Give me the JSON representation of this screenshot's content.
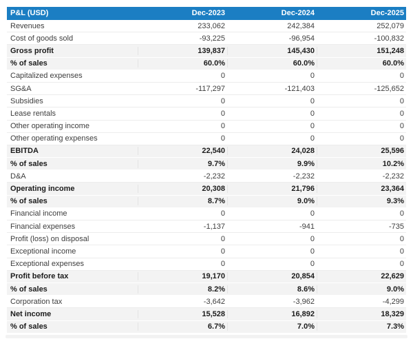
{
  "chart_data": {
    "type": "table",
    "title": "P&L (USD)",
    "columns": [
      "P&L (USD)",
      "Dec-2023",
      "Dec-2024",
      "Dec-2025"
    ],
    "rows": [
      {
        "label": "Revenues",
        "values": [
          "233,062",
          "242,384",
          "252,079"
        ],
        "emphasis": false
      },
      {
        "label": "Cost of goods sold",
        "values": [
          "-93,225",
          "-96,954",
          "-100,832"
        ],
        "emphasis": false
      },
      {
        "label": "Gross profit",
        "values": [
          "139,837",
          "145,430",
          "151,248"
        ],
        "emphasis": true
      },
      {
        "label": "% of sales",
        "values": [
          "60.0%",
          "60.0%",
          "60.0%"
        ],
        "emphasis": true
      },
      {
        "label": "Capitalized expenses",
        "values": [
          "0",
          "0",
          "0"
        ],
        "emphasis": false
      },
      {
        "label": "SG&A",
        "values": [
          "-117,297",
          "-121,403",
          "-125,652"
        ],
        "emphasis": false
      },
      {
        "label": "Subsidies",
        "values": [
          "0",
          "0",
          "0"
        ],
        "emphasis": false
      },
      {
        "label": "Lease rentals",
        "values": [
          "0",
          "0",
          "0"
        ],
        "emphasis": false
      },
      {
        "label": "Other operating income",
        "values": [
          "0",
          "0",
          "0"
        ],
        "emphasis": false
      },
      {
        "label": "Other operating expenses",
        "values": [
          "0",
          "0",
          "0"
        ],
        "emphasis": false
      },
      {
        "label": "EBITDA",
        "values": [
          "22,540",
          "24,028",
          "25,596"
        ],
        "emphasis": true
      },
      {
        "label": "% of sales",
        "values": [
          "9.7%",
          "9.9%",
          "10.2%"
        ],
        "emphasis": true
      },
      {
        "label": "D&A",
        "values": [
          "-2,232",
          "-2,232",
          "-2,232"
        ],
        "emphasis": false
      },
      {
        "label": "Operating income",
        "values": [
          "20,308",
          "21,796",
          "23,364"
        ],
        "emphasis": true
      },
      {
        "label": "% of sales",
        "values": [
          "8.7%",
          "9.0%",
          "9.3%"
        ],
        "emphasis": true
      },
      {
        "label": "Financial income",
        "values": [
          "0",
          "0",
          "0"
        ],
        "emphasis": false
      },
      {
        "label": "Financial expenses",
        "values": [
          "-1,137",
          "-941",
          "-735"
        ],
        "emphasis": false
      },
      {
        "label": "Profit (loss) on disposal",
        "values": [
          "0",
          "0",
          "0"
        ],
        "emphasis": false
      },
      {
        "label": "Exceptional income",
        "values": [
          "0",
          "0",
          "0"
        ],
        "emphasis": false
      },
      {
        "label": "Exceptional expenses",
        "values": [
          "0",
          "0",
          "0"
        ],
        "emphasis": false
      },
      {
        "label": "Profit before tax",
        "values": [
          "19,170",
          "20,854",
          "22,629"
        ],
        "emphasis": true
      },
      {
        "label": "% of sales",
        "values": [
          "8.2%",
          "8.6%",
          "9.0%"
        ],
        "emphasis": true
      },
      {
        "label": "Corporation tax",
        "values": [
          "-3,642",
          "-3,962",
          "-4,299"
        ],
        "emphasis": false
      },
      {
        "label": "Net income",
        "values": [
          "15,528",
          "16,892",
          "18,329"
        ],
        "emphasis": true
      },
      {
        "label": "% of sales",
        "values": [
          "6.7%",
          "7.0%",
          "7.3%"
        ],
        "emphasis": true
      }
    ]
  },
  "colors": {
    "header_bg": "#1b7ec3",
    "header_text": "#ffffff",
    "emphasis_row_bg": "#f3f3f3",
    "row_border": "#ececec",
    "body_text": "#3d3d3d",
    "emphasis_text": "#1b1b1b"
  }
}
